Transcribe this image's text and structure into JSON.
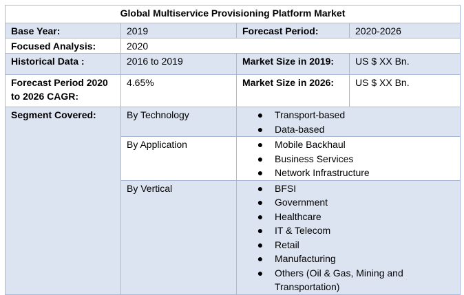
{
  "title": "Global Multiservice Provisioning Platform Market",
  "rows": {
    "base_year": {
      "label": "Base Year:",
      "value": "2019",
      "label2": "Forecast Period:",
      "value2": "2020-2026"
    },
    "focused": {
      "label": "Focused Analysis:",
      "value": "2020"
    },
    "historical": {
      "label": "Historical Data :",
      "value": "2016 to 2019",
      "label2": "Market Size in 2019:",
      "value2": "US $ XX Bn."
    },
    "cagr": {
      "label": "Forecast Period 2020 to 2026 CAGR:",
      "value": "4.65%",
      "label2": "Market Size in 2026:",
      "value2": "US $ XX Bn."
    }
  },
  "segment": {
    "label": "Segment Covered:",
    "groups": [
      {
        "name": "By Technology",
        "items": [
          "Transport-based",
          "Data-based"
        ]
      },
      {
        "name": "By Application",
        "items": [
          "Mobile Backhaul",
          "Business Services",
          "Network Infrastructure"
        ]
      },
      {
        "name": "By Vertical",
        "items": [
          "BFSI",
          "Government",
          "Healthcare",
          "IT & Telecom",
          "Retail",
          "Manufacturing",
          "Others (Oil & Gas, Mining and Transportation)"
        ]
      }
    ]
  },
  "bullet_glyph": "●"
}
